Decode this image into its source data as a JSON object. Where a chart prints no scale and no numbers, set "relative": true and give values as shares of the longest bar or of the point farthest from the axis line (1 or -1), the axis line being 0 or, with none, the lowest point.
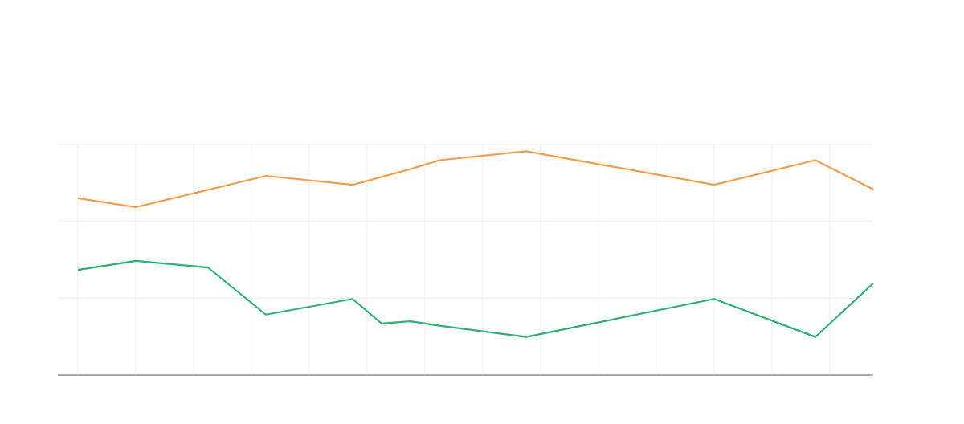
{
  "chart_data": {
    "type": "line",
    "relative": true,
    "grid": true,
    "marker": "none",
    "line_style": "solid",
    "categories": [
      null,
      null,
      null,
      null,
      null,
      null,
      null,
      null,
      null,
      null,
      null,
      null,
      null,
      null,
      null,
      null,
      null,
      null,
      null,
      null,
      null,
      null,
      null,
      null,
      null,
      null,
      null,
      null,
      null,
      null,
      null,
      null,
      null,
      null,
      null,
      null,
      null,
      null,
      null,
      null,
      null,
      null,
      null,
      null,
      null,
      null,
      null,
      null,
      null,
      null,
      null,
      null,
      null,
      null,
      null,
      null
    ],
    "series": [
      {
        "color": "#2eb273",
        "values": [
          0.47,
          null,
          null,
          null,
          0.51,
          null,
          null,
          null,
          null,
          0.48,
          null,
          null,
          null,
          0.27,
          null,
          null,
          null,
          null,
          null,
          0.34,
          null,
          0.23,
          null,
          0.24,
          null,
          0.22,
          null,
          null,
          null,
          null,
          null,
          0.17,
          null,
          null,
          null,
          null,
          null,
          null,
          null,
          null,
          null,
          null,
          null,
          null,
          0.34,
          null,
          null,
          null,
          null,
          null,
          null,
          0.17,
          null,
          null,
          null,
          0.41
        ]
      },
      {
        "color": "#f59d4a",
        "values": [
          0.79,
          null,
          null,
          null,
          0.75,
          null,
          null,
          null,
          null,
          null,
          null,
          null,
          null,
          0.89,
          null,
          null,
          null,
          null,
          null,
          0.85,
          null,
          null,
          null,
          0.92,
          null,
          0.96,
          null,
          null,
          null,
          null,
          null,
          1.0,
          null,
          null,
          null,
          null,
          null,
          null,
          null,
          null,
          null,
          null,
          null,
          null,
          0.85,
          null,
          null,
          null,
          null,
          null,
          null,
          0.96,
          null,
          null,
          null,
          0.83
        ]
      }
    ]
  }
}
